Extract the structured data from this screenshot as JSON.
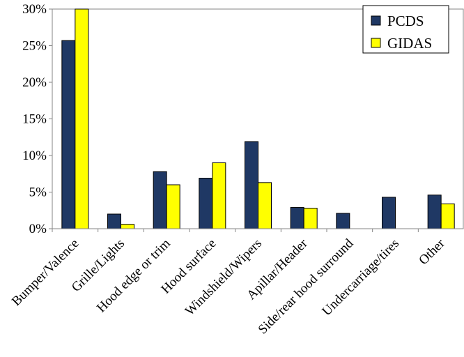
{
  "chart_data": {
    "type": "bar",
    "title": "",
    "xlabel": "",
    "ylabel": "",
    "categories": [
      "Bumper/Valence",
      "Grille/Lights",
      "Hood edge or trim",
      "Hood surface",
      "Windshield/Wipers",
      "Apillar/Header",
      "Side/rear hood surround",
      "Undercarriage/tires",
      "Other"
    ],
    "series": [
      {
        "name": "PCDS",
        "color": "#1F3864",
        "values": [
          25.7,
          2.0,
          7.8,
          6.9,
          11.9,
          2.9,
          2.1,
          4.3,
          4.6
        ]
      },
      {
        "name": "GIDAS",
        "color": "#FFFF00",
        "values": [
          30.0,
          0.6,
          6.0,
          9.0,
          6.3,
          2.8,
          0.0,
          0.0,
          3.4
        ]
      }
    ],
    "ylim": [
      0,
      30
    ],
    "yticks": [
      0,
      5,
      10,
      15,
      20,
      25,
      30
    ],
    "ytick_labels": [
      "0%",
      "5%",
      "10%",
      "15%",
      "20%",
      "25%",
      "30%"
    ],
    "grid": false,
    "legend_position": "top-right"
  }
}
